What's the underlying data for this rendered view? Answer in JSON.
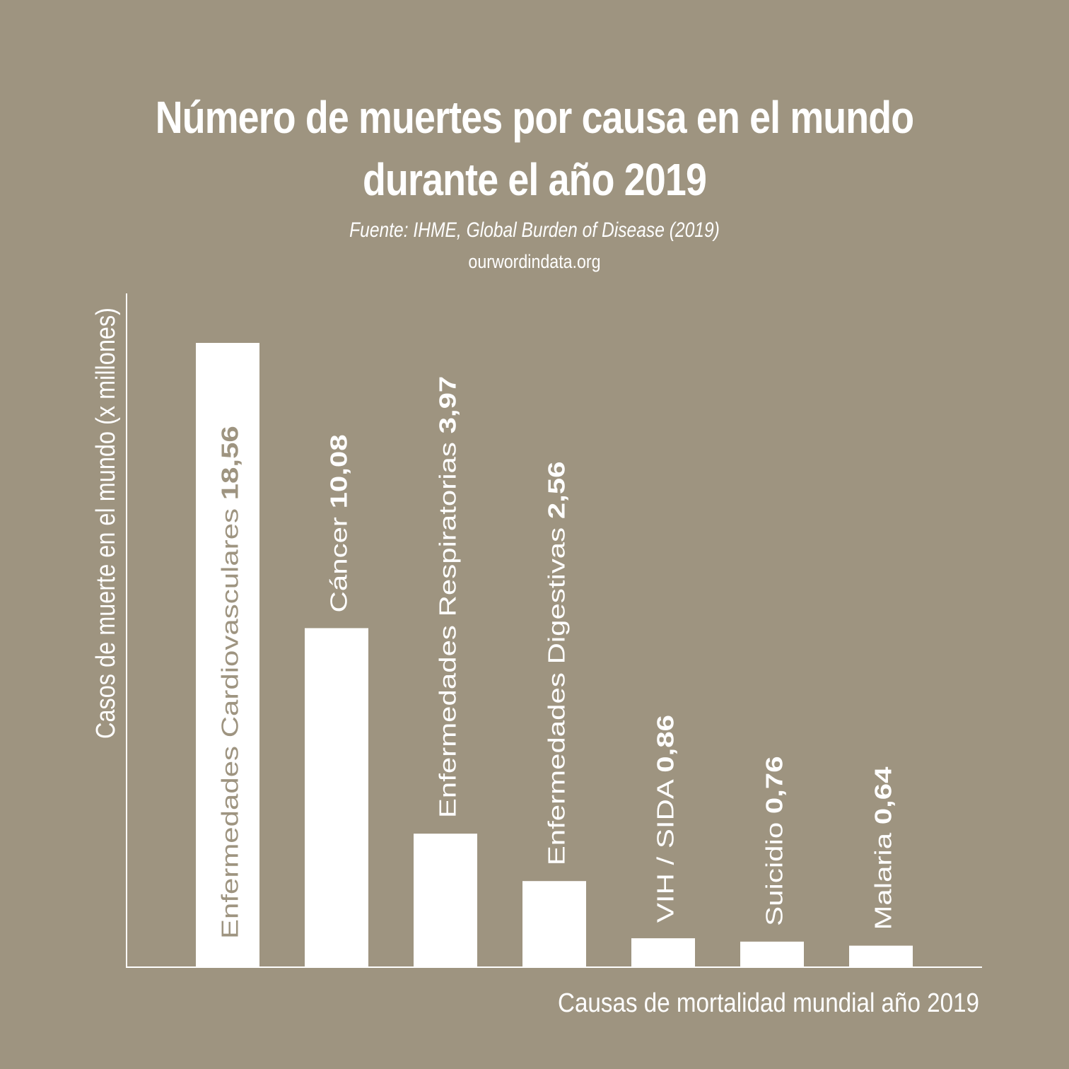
{
  "title_lines": [
    "Número de muertes por causa en el mundo",
    "durante el año 2019"
  ],
  "source": "Fuente: IHME, Global Burden of Disease (2019)",
  "site": "ourwordindata.org",
  "colors": {
    "background": "#9e9480",
    "bars": "#ffffff",
    "label_on_bar": "#9e9480",
    "text": "#ffffff"
  },
  "chart_data": {
    "type": "bar",
    "title": "Número de muertes por causa en el mundo durante el año 2019",
    "xlabel": "Causas de mortalidad mundial año 2019",
    "ylabel": "Casos de muerte en el mundo (x millones)",
    "ylim": [
      0,
      20
    ],
    "grid": false,
    "categories": [
      "Enfermedades Cardiovasculares",
      "Cáncer",
      "Enfermedades Respiratorias",
      "Enfermedades Digestivas",
      "VIH / SIDA",
      "Suicidio",
      "Malaria"
    ],
    "values": [
      18.56,
      10.08,
      3.97,
      2.56,
      0.86,
      0.76,
      0.64
    ],
    "value_labels": [
      "18,56",
      "10,08",
      "3,97",
      "2,56",
      "0,86",
      "0,76",
      "0,64"
    ]
  }
}
